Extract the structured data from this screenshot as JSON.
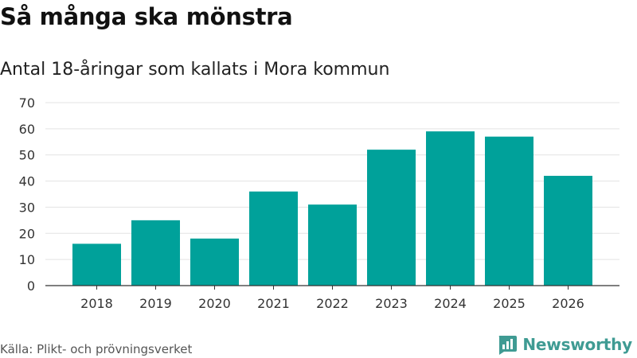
{
  "header": {
    "title": "Så många ska mönstra",
    "subtitle": "Antal 18-åringar som kallats i Mora kommun"
  },
  "footer": {
    "source": "Källa: Plikt- och prövningsverket",
    "brand": "Newsworthy",
    "brand_icon": "newsworthy-logo-icon"
  },
  "colors": {
    "bar": "#00a19a",
    "grid": "#e3e3e3",
    "axis": "#333333",
    "brand": "#3f9b93"
  },
  "chart_data": {
    "type": "bar",
    "title": "Så många ska mönstra",
    "subtitle": "Antal 18-åringar som kallats i Mora kommun",
    "categories": [
      "2018",
      "2019",
      "2020",
      "2021",
      "2022",
      "2023",
      "2024",
      "2025",
      "2026"
    ],
    "values": [
      16,
      25,
      18,
      36,
      31,
      52,
      59,
      57,
      42
    ],
    "ylim": [
      0,
      70
    ],
    "yticks": [
      0,
      10,
      20,
      30,
      40,
      50,
      60,
      70
    ],
    "xlabel": "",
    "ylabel": "",
    "grid": true,
    "legend": false
  }
}
